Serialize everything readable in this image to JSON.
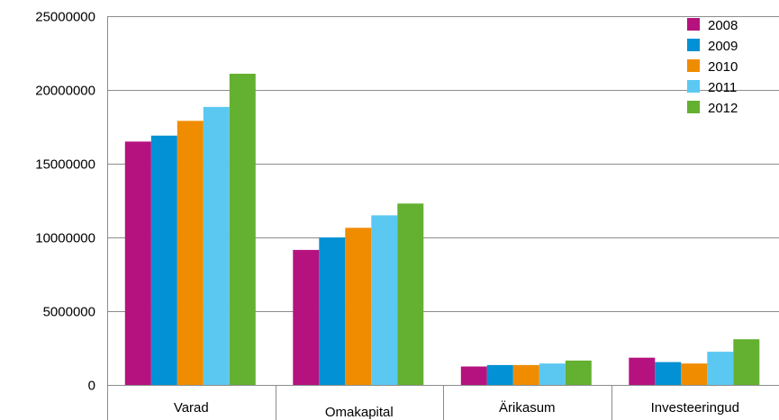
{
  "chart_data": {
    "type": "bar",
    "title": "",
    "xlabel": "",
    "ylabel": "",
    "categories": [
      "Varad",
      "Omakapital",
      "Ärikasum",
      "Investeeringud"
    ],
    "series": [
      {
        "name": "2008",
        "color": "#b5127f",
        "values": [
          16500000,
          9150000,
          1250000,
          1850000
        ]
      },
      {
        "name": "2009",
        "color": "#0191d4",
        "values": [
          16900000,
          10000000,
          1350000,
          1550000
        ]
      },
      {
        "name": "2010",
        "color": "#f08c00",
        "values": [
          17900000,
          10650000,
          1350000,
          1450000
        ]
      },
      {
        "name": "2011",
        "color": "#5bc8f2",
        "values": [
          18850000,
          11500000,
          1450000,
          2250000
        ]
      },
      {
        "name": "2012",
        "color": "#64b030",
        "values": [
          21100000,
          12300000,
          1650000,
          3100000
        ]
      }
    ],
    "ylim": [
      0,
      25000000
    ],
    "yticks": [
      "0",
      "5000000",
      "10000000",
      "15000000",
      "20000000",
      "25000000"
    ],
    "grid": true,
    "legend_position": "top-right"
  }
}
